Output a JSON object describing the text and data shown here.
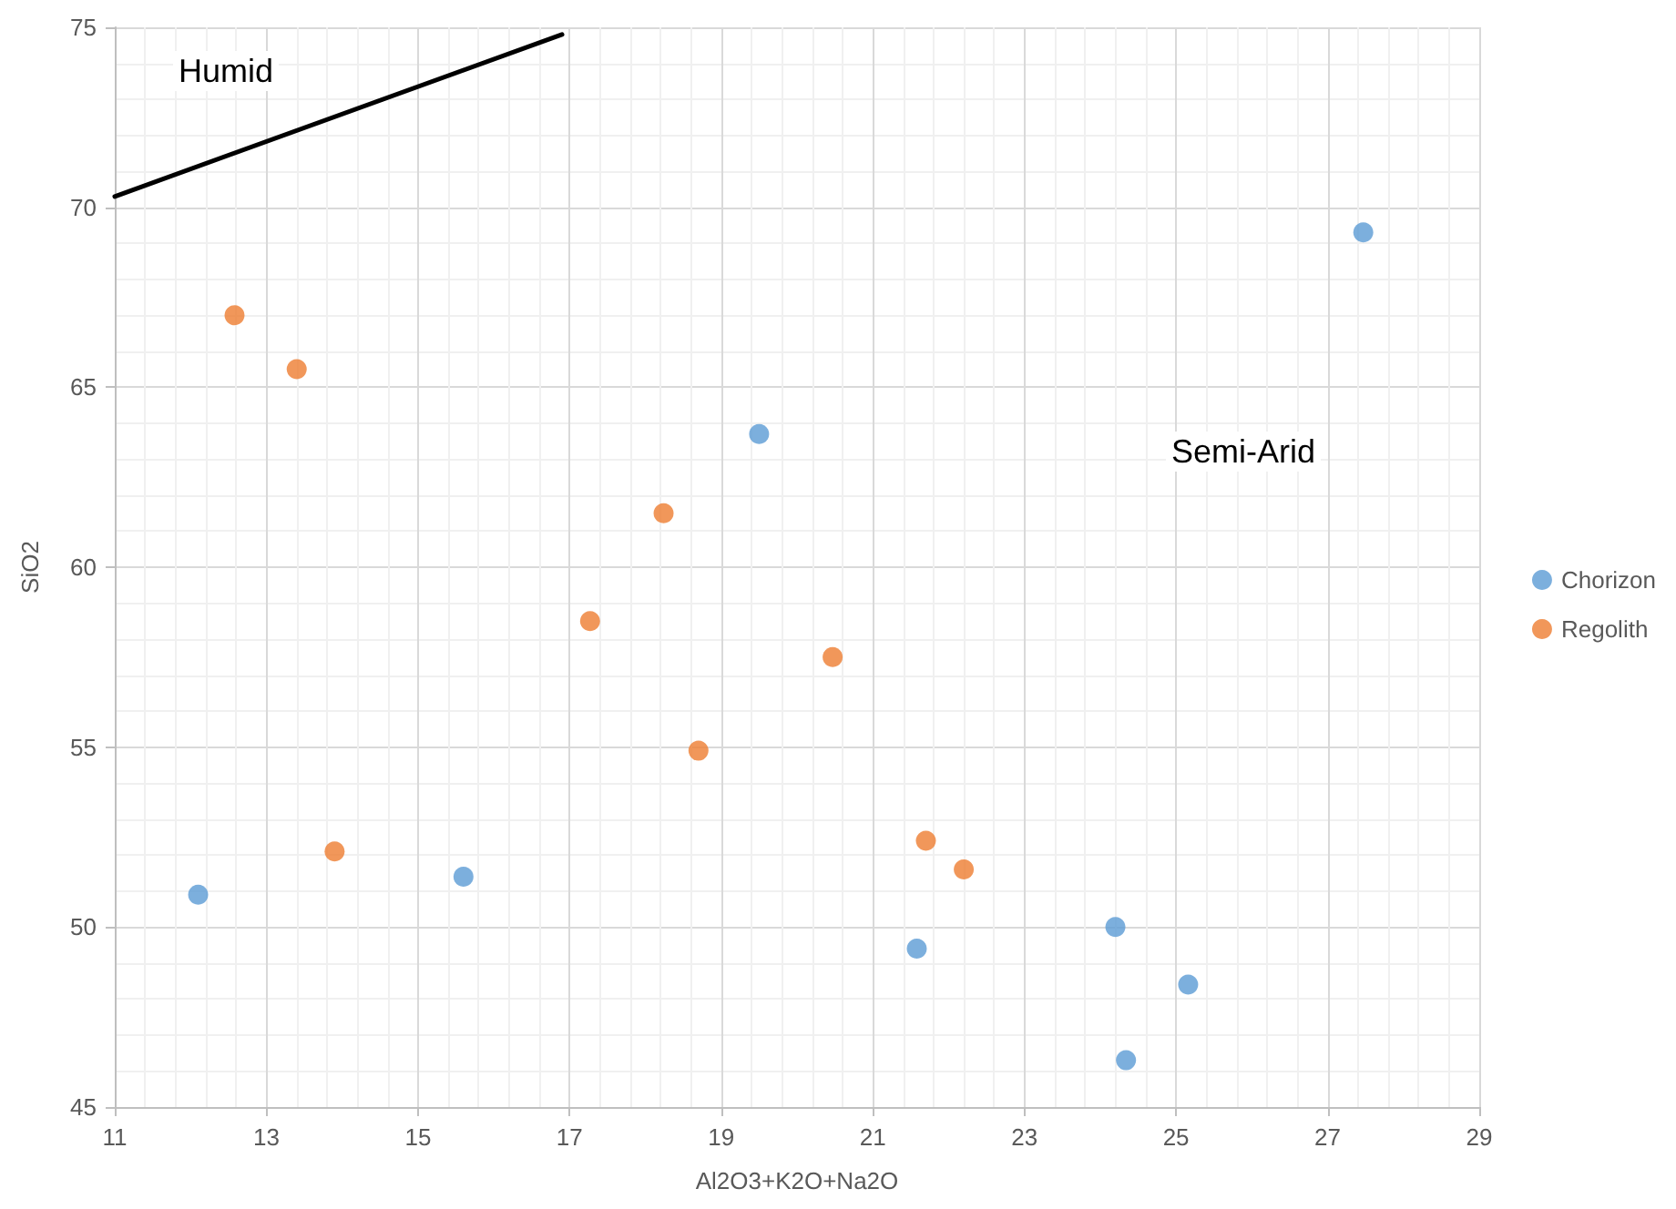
{
  "chart_data": {
    "type": "scatter",
    "xlabel": "Al2O3+K2O+Na2O",
    "ylabel": "SiO2",
    "annotations": [
      "Humid",
      "Semi-Arid"
    ],
    "xlim": [
      11,
      29
    ],
    "xticks": [
      11,
      13,
      15,
      17,
      19,
      21,
      23,
      25,
      27,
      29
    ],
    "ylim": [
      45,
      75
    ],
    "yticks": [
      45,
      50,
      55,
      60,
      65,
      70,
      75
    ],
    "grid": true,
    "legend": "right",
    "marker": "circle",
    "series": [
      {
        "name": "Chorizon",
        "color": "#5b9bd5",
        "x": [
          19.5,
          27.47,
          12.1,
          15.6,
          21.58,
          24.2,
          25.16,
          24.34
        ],
        "values": [
          63.7,
          69.3,
          50.9,
          51.4,
          49.4,
          50.0,
          48.4,
          46.3
        ]
      },
      {
        "name": "Regolith",
        "color": "#ed7d31",
        "x": [
          12.58,
          13.4,
          18.24,
          17.27,
          20.47,
          18.7,
          13.9,
          21.7,
          22.2
        ],
        "values": [
          67.0,
          65.5,
          61.5,
          58.5,
          57.5,
          54.9,
          52.1,
          52.4,
          51.6
        ]
      },
      {
        "type": "line",
        "marker": "none",
        "color": "#000000",
        "x": [
          11,
          16.9
        ],
        "values": [
          70.3,
          74.8
        ]
      }
    ]
  }
}
